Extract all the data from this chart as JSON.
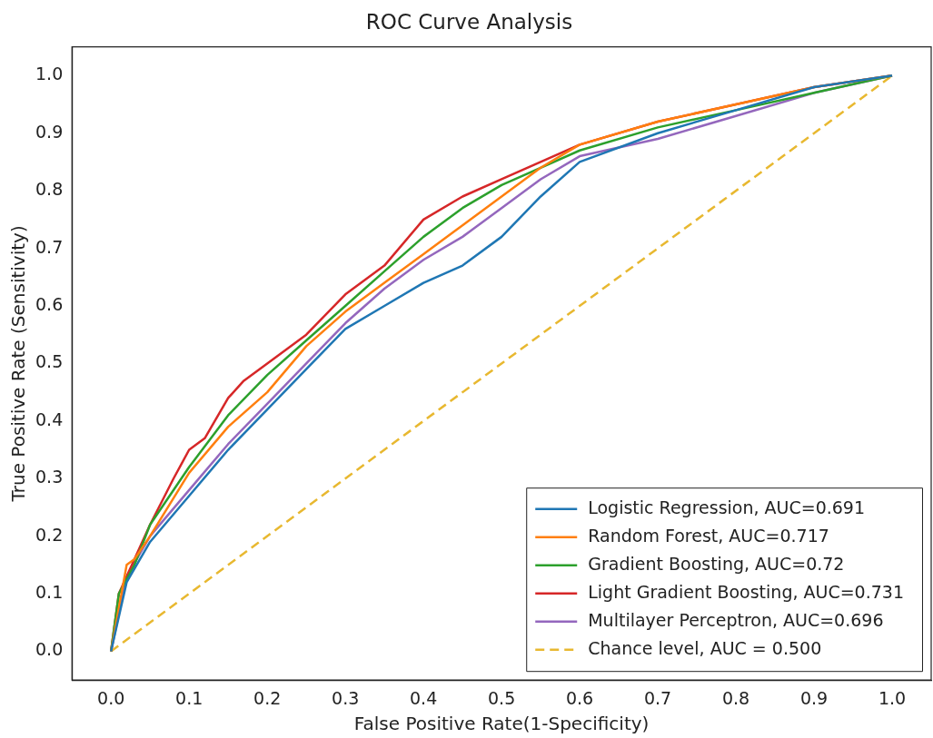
{
  "chart_data": {
    "type": "line",
    "title": "ROC Curve Analysis",
    "xlabel": "False Positive Rate(1-Specificity)",
    "ylabel": "True Positive Rate (Sensitivity)",
    "xlim": [
      -0.05,
      1.05
    ],
    "ylim": [
      -0.05,
      1.05
    ],
    "xticks": [
      {
        "value": 0,
        "label": "0.0"
      },
      0.1,
      0.2,
      0.3,
      0.4,
      0.5,
      0.6,
      0.7,
      0.8,
      0.9,
      {
        "value": 1,
        "label": "1.0"
      }
    ],
    "yticks": [
      {
        "value": 0,
        "label": "0.0"
      },
      0.1,
      0.2,
      0.3,
      0.4,
      0.5,
      0.6,
      0.7,
      0.8,
      0.9,
      {
        "value": 1,
        "label": "1.0"
      }
    ],
    "grid": false,
    "legend": "bottom right",
    "marker": "none",
    "series": [
      {
        "name": "Logistic Regression, AUC=0.691",
        "color": "#1f77b4",
        "x": [
          0,
          0.02,
          0.05,
          0.1,
          0.15,
          0.2,
          0.25,
          0.3,
          0.35,
          0.4,
          0.45,
          0.5,
          0.55,
          0.6,
          0.7,
          0.8,
          0.9,
          1
        ],
        "values": [
          0,
          0.12,
          0.19,
          0.27,
          0.35,
          0.42,
          0.49,
          0.56,
          0.6,
          0.64,
          0.67,
          0.72,
          0.79,
          0.85,
          0.9,
          0.94,
          0.98,
          1
        ]
      },
      {
        "name": "Random Forest, AUC=0.717",
        "color": "#ff7f0e",
        "x": [
          0,
          0.02,
          0.03,
          0.05,
          0.1,
          0.15,
          0.2,
          0.25,
          0.3,
          0.35,
          0.4,
          0.45,
          0.5,
          0.55,
          0.6,
          0.7,
          0.8,
          0.9,
          1
        ],
        "values": [
          0,
          0.15,
          0.16,
          0.2,
          0.31,
          0.39,
          0.45,
          0.53,
          0.59,
          0.64,
          0.69,
          0.74,
          0.79,
          0.84,
          0.88,
          0.92,
          0.95,
          0.98,
          1
        ]
      },
      {
        "name": "Gradient Boosting, AUC=0.72",
        "color": "#2ca02c",
        "x": [
          0,
          0.01,
          0.03,
          0.05,
          0.1,
          0.15,
          0.2,
          0.25,
          0.3,
          0.35,
          0.4,
          0.45,
          0.5,
          0.55,
          0.6,
          0.7,
          0.8,
          0.9,
          1
        ],
        "values": [
          0,
          0.1,
          0.15,
          0.22,
          0.32,
          0.41,
          0.48,
          0.54,
          0.6,
          0.66,
          0.72,
          0.77,
          0.81,
          0.84,
          0.87,
          0.91,
          0.94,
          0.97,
          1
        ]
      },
      {
        "name": "Light Gradient Boosting, AUC=0.731",
        "color": "#d62728",
        "x": [
          0,
          0.01,
          0.03,
          0.05,
          0.08,
          0.1,
          0.12,
          0.15,
          0.17,
          0.2,
          0.25,
          0.3,
          0.35,
          0.4,
          0.45,
          0.5,
          0.55,
          0.6,
          0.7,
          0.8,
          0.9,
          1
        ],
        "values": [
          0,
          0.1,
          0.16,
          0.22,
          0.3,
          0.35,
          0.37,
          0.44,
          0.47,
          0.5,
          0.55,
          0.62,
          0.67,
          0.75,
          0.79,
          0.82,
          0.85,
          0.88,
          0.92,
          0.95,
          0.98,
          1
        ]
      },
      {
        "name": "Multilayer Perceptron, AUC=0.696",
        "color": "#9467bd",
        "x": [
          0,
          0.02,
          0.05,
          0.1,
          0.15,
          0.2,
          0.25,
          0.3,
          0.35,
          0.4,
          0.45,
          0.5,
          0.55,
          0.6,
          0.7,
          0.8,
          0.9,
          1
        ],
        "values": [
          0,
          0.13,
          0.2,
          0.28,
          0.36,
          0.43,
          0.5,
          0.57,
          0.63,
          0.68,
          0.72,
          0.77,
          0.82,
          0.86,
          0.89,
          0.93,
          0.97,
          1
        ]
      },
      {
        "name": "Chance level, AUC = 0.500",
        "color": "#e8b830",
        "line_style": "dashed",
        "x": [
          0,
          1
        ],
        "values": [
          0,
          1
        ]
      }
    ]
  }
}
